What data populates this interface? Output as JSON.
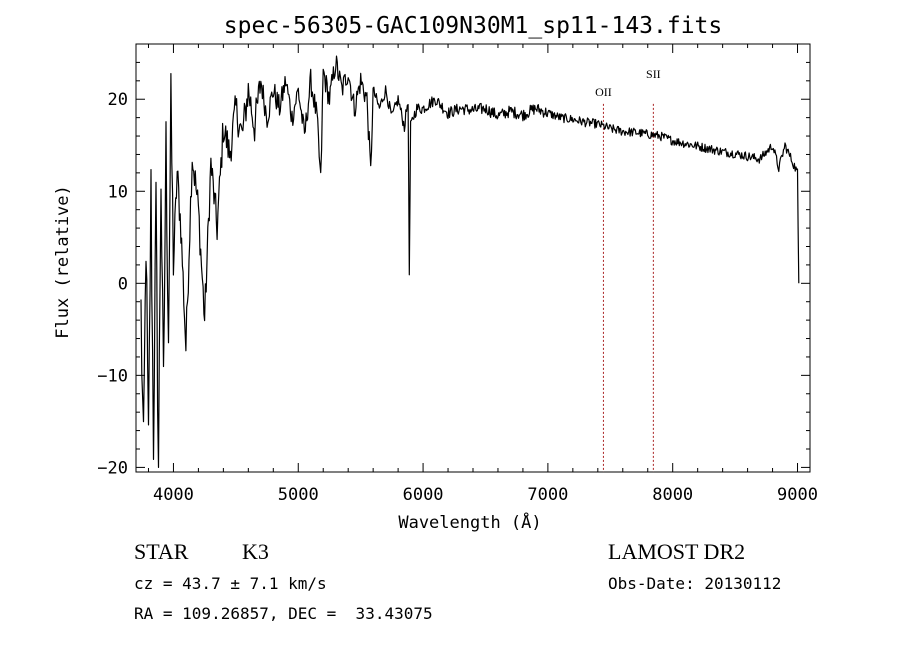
{
  "chart_data": {
    "type": "line",
    "title": "spec-56305-GAC109N30M1_sp11-143.fits",
    "xlabel": "Wavelength (Å)",
    "ylabel": "Flux (relative)",
    "xlim": [
      3700,
      9100
    ],
    "ylim": [
      -20.5,
      26
    ],
    "xticks": [
      4000,
      5000,
      6000,
      7000,
      8000,
      9000
    ],
    "yticks": [
      -20,
      -10,
      0,
      10,
      20
    ],
    "grid": false,
    "line_color": "#000000",
    "marker_color": "#aa2222",
    "lines": [
      {
        "label": "OII",
        "wavelength": 7445
      },
      {
        "label": "SII",
        "wavelength": 7845
      }
    ],
    "series": [
      {
        "x": [
          3740,
          3760,
          3780,
          3800,
          3820,
          3840,
          3860,
          3880,
          3900,
          3920,
          3940,
          3960,
          3980,
          4000,
          4030,
          4060,
          4100,
          4150,
          4200,
          4250,
          4300,
          4350,
          4400,
          4450,
          4500,
          4550,
          4600,
          4650,
          4700,
          4750,
          4800,
          4850,
          4900,
          4950,
          5000,
          5050,
          5100,
          5150,
          5180,
          5200,
          5250,
          5300,
          5350,
          5400,
          5450,
          5500,
          5550,
          5580,
          5600,
          5650,
          5700,
          5750,
          5800,
          5850,
          5880,
          5890,
          5900,
          5920,
          5950,
          6000,
          6100,
          6200,
          6300,
          6400,
          6500,
          6600,
          6700,
          6800,
          6900,
          7000,
          7100,
          7200,
          7300,
          7400,
          7500,
          7600,
          7700,
          7800,
          7900,
          8000,
          8100,
          8200,
          8300,
          8400,
          8500,
          8600,
          8700,
          8800,
          8850,
          8900,
          8950,
          9000,
          9010
        ],
        "y": [
          -3,
          -19,
          5,
          -18,
          10,
          -17,
          8,
          -20,
          12,
          -12,
          15,
          -5,
          19,
          2,
          12,
          6,
          -7,
          14,
          8,
          -4,
          13,
          6,
          17,
          14,
          19,
          16,
          21,
          17,
          22,
          18,
          21,
          19,
          22,
          18,
          21,
          16,
          22,
          18,
          11,
          23,
          20,
          24,
          21,
          23,
          19,
          22,
          20,
          12,
          21,
          19,
          21,
          18,
          20,
          17,
          20,
          1,
          17,
          18,
          19,
          19,
          20,
          18.5,
          19,
          18.8,
          19,
          18.2,
          18.7,
          18.3,
          19,
          18.5,
          18,
          17.8,
          17.5,
          17.3,
          16.8,
          16.5,
          16.4,
          16.2,
          16,
          15.5,
          15.2,
          14.9,
          14.6,
          14.3,
          14.1,
          13.8,
          13.5,
          15,
          12.5,
          15,
          13.5,
          12,
          0
        ]
      }
    ]
  },
  "info": {
    "class_label": "STAR",
    "subclass": "K3",
    "survey": "LAMOST DR2",
    "cz_text": "cz = 43.7 ± 7.1 km/s",
    "obs_date": "Obs-Date: 20130112",
    "coords": "RA = 109.26857, DEC =  33.43075"
  }
}
